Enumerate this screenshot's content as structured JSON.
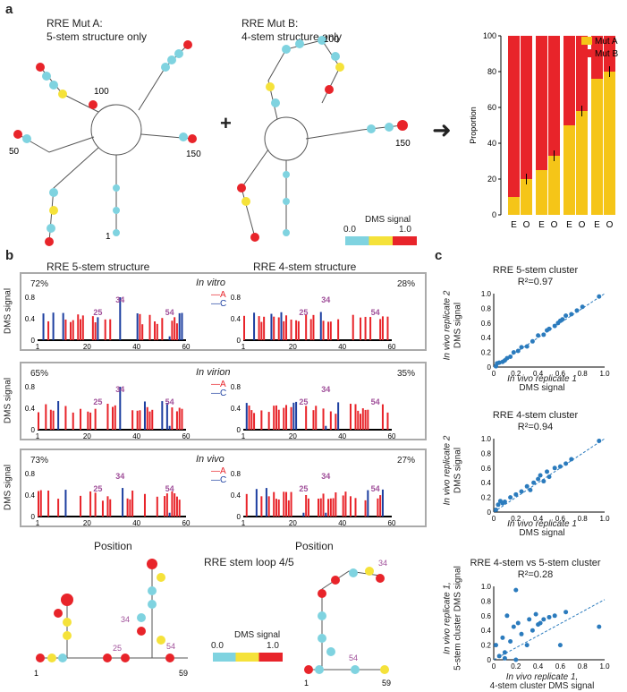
{
  "panel_a": {
    "label": "a",
    "mutA_title": "RRE Mut A:",
    "mutA_sub": "5-stem structure only",
    "mutB_title": "RRE Mut B:",
    "mutB_sub": "4-stem structure only",
    "pos_50": "50",
    "pos_100": "100",
    "pos_150": "150",
    "pos_1": "1",
    "dms_legend_title": "DMS signal",
    "dms_legend_min": "0.0",
    "dms_legend_max": "1.0"
  },
  "panel_b": {
    "label": "b",
    "col1_title": "RRE 5-stem structure",
    "col2_title": "RRE 4-stem structure",
    "ylabel": "DMS signal",
    "xlabel": "Position",
    "legend_a": "A",
    "legend_c": "C",
    "rows": [
      {
        "condition": "In vitro",
        "pct_left": "72%",
        "pct_right": "28%"
      },
      {
        "condition": "In virion",
        "pct_left": "65%",
        "pct_right": "35%"
      },
      {
        "condition": "In vivo",
        "pct_left": "73%",
        "pct_right": "27%"
      }
    ],
    "stemloop_title": "RRE stem loop 4/5",
    "ann_25": "25",
    "ann_34": "34",
    "ann_54": "54",
    "ann_1": "1",
    "ann_59": "59",
    "yticks": [
      "0",
      "0.4",
      "0.8"
    ],
    "xticks": [
      "1",
      "20",
      "40",
      "60"
    ]
  },
  "panel_c": {
    "label": "c",
    "plots": [
      {
        "title": "RRE 5-stem cluster",
        "r2": "R²=0.97",
        "ylabel1": "In vivo replicate 2",
        "ylabel2": "DMS signal",
        "xlabel1": "In vivo replicate 1",
        "xlabel2": "DMS signal"
      },
      {
        "title": "RRE 4-stem cluster",
        "r2": "R²=0.94",
        "ylabel1": "In vivo replicate 2",
        "ylabel2": "DMS signal",
        "xlabel1": "In vivo replicate 1",
        "xlabel2": "DMS signal"
      },
      {
        "title": "RRE 4-stem vs 5-stem cluster",
        "r2": "R²=0.28",
        "ylabel1": "In vivo replicate 1,",
        "ylabel2": "5-stem cluster DMS signal",
        "xlabel1": "In vivo replicate 1,",
        "xlabel2": "4-stem cluster DMS signal"
      }
    ],
    "ticks": [
      "0",
      "0.2",
      "0.4",
      "0.6",
      "0.8",
      "1.0"
    ]
  },
  "chart_data": [
    {
      "type": "bar",
      "ylabel": "Proportion",
      "ylim": [
        0,
        100
      ],
      "categories": [
        "E",
        "O",
        "E",
        "O",
        "E",
        "O",
        "E",
        "O"
      ],
      "series": [
        {
          "name": "Mut A",
          "color": "#f5c518",
          "values": [
            10,
            20,
            25,
            33,
            50,
            58,
            76,
            80
          ]
        },
        {
          "name": "Mut B",
          "color": "#e8242a",
          "values": [
            90,
            80,
            75,
            67,
            50,
            42,
            24,
            20
          ]
        }
      ],
      "legend": "top-right"
    },
    {
      "type": "scatter",
      "title": "RRE 5-stem cluster",
      "xlim": [
        0,
        1.0
      ],
      "ylim": [
        0,
        1.0
      ],
      "points": [
        [
          0.02,
          0.01
        ],
        [
          0.03,
          0.05
        ],
        [
          0.05,
          0.06
        ],
        [
          0.08,
          0.07
        ],
        [
          0.1,
          0.09
        ],
        [
          0.12,
          0.12
        ],
        [
          0.15,
          0.14
        ],
        [
          0.18,
          0.2
        ],
        [
          0.22,
          0.22
        ],
        [
          0.25,
          0.27
        ],
        [
          0.3,
          0.28
        ],
        [
          0.35,
          0.35
        ],
        [
          0.4,
          0.43
        ],
        [
          0.45,
          0.44
        ],
        [
          0.48,
          0.5
        ],
        [
          0.5,
          0.52
        ],
        [
          0.55,
          0.56
        ],
        [
          0.58,
          0.6
        ],
        [
          0.6,
          0.63
        ],
        [
          0.62,
          0.65
        ],
        [
          0.65,
          0.7
        ],
        [
          0.7,
          0.72
        ],
        [
          0.75,
          0.77
        ],
        [
          0.8,
          0.82
        ],
        [
          0.95,
          0.96
        ]
      ]
    },
    {
      "type": "scatter",
      "title": "RRE 4-stem cluster",
      "xlim": [
        0,
        1.0
      ],
      "ylim": [
        0,
        1.0
      ],
      "points": [
        [
          0.02,
          0.03
        ],
        [
          0.04,
          0.1
        ],
        [
          0.06,
          0.15
        ],
        [
          0.08,
          0.12
        ],
        [
          0.1,
          0.14
        ],
        [
          0.15,
          0.2
        ],
        [
          0.2,
          0.24
        ],
        [
          0.25,
          0.28
        ],
        [
          0.3,
          0.35
        ],
        [
          0.33,
          0.3
        ],
        [
          0.36,
          0.4
        ],
        [
          0.4,
          0.45
        ],
        [
          0.42,
          0.5
        ],
        [
          0.45,
          0.42
        ],
        [
          0.48,
          0.55
        ],
        [
          0.5,
          0.48
        ],
        [
          0.55,
          0.6
        ],
        [
          0.6,
          0.62
        ],
        [
          0.65,
          0.66
        ],
        [
          0.7,
          0.72
        ],
        [
          0.95,
          0.97
        ]
      ]
    },
    {
      "type": "scatter",
      "title": "RRE 4-stem vs 5-stem cluster",
      "xlim": [
        0,
        1.0
      ],
      "ylim": [
        0,
        1.0
      ],
      "points": [
        [
          0.02,
          0.2
        ],
        [
          0.05,
          0.05
        ],
        [
          0.08,
          0.3
        ],
        [
          0.1,
          0.1
        ],
        [
          0.12,
          0.6
        ],
        [
          0.15,
          0.25
        ],
        [
          0.18,
          0.45
        ],
        [
          0.2,
          0.0
        ],
        [
          0.22,
          0.5
        ],
        [
          0.25,
          0.35
        ],
        [
          0.3,
          0.2
        ],
        [
          0.32,
          0.55
        ],
        [
          0.35,
          0.4
        ],
        [
          0.38,
          0.62
        ],
        [
          0.4,
          0.48
        ],
        [
          0.42,
          0.5
        ],
        [
          0.45,
          0.55
        ],
        [
          0.5,
          0.58
        ],
        [
          0.55,
          0.6
        ],
        [
          0.6,
          0.2
        ],
        [
          0.65,
          0.65
        ],
        [
          0.95,
          0.45
        ],
        [
          0.2,
          0.95
        ],
        [
          0.1,
          0.02
        ]
      ]
    }
  ]
}
